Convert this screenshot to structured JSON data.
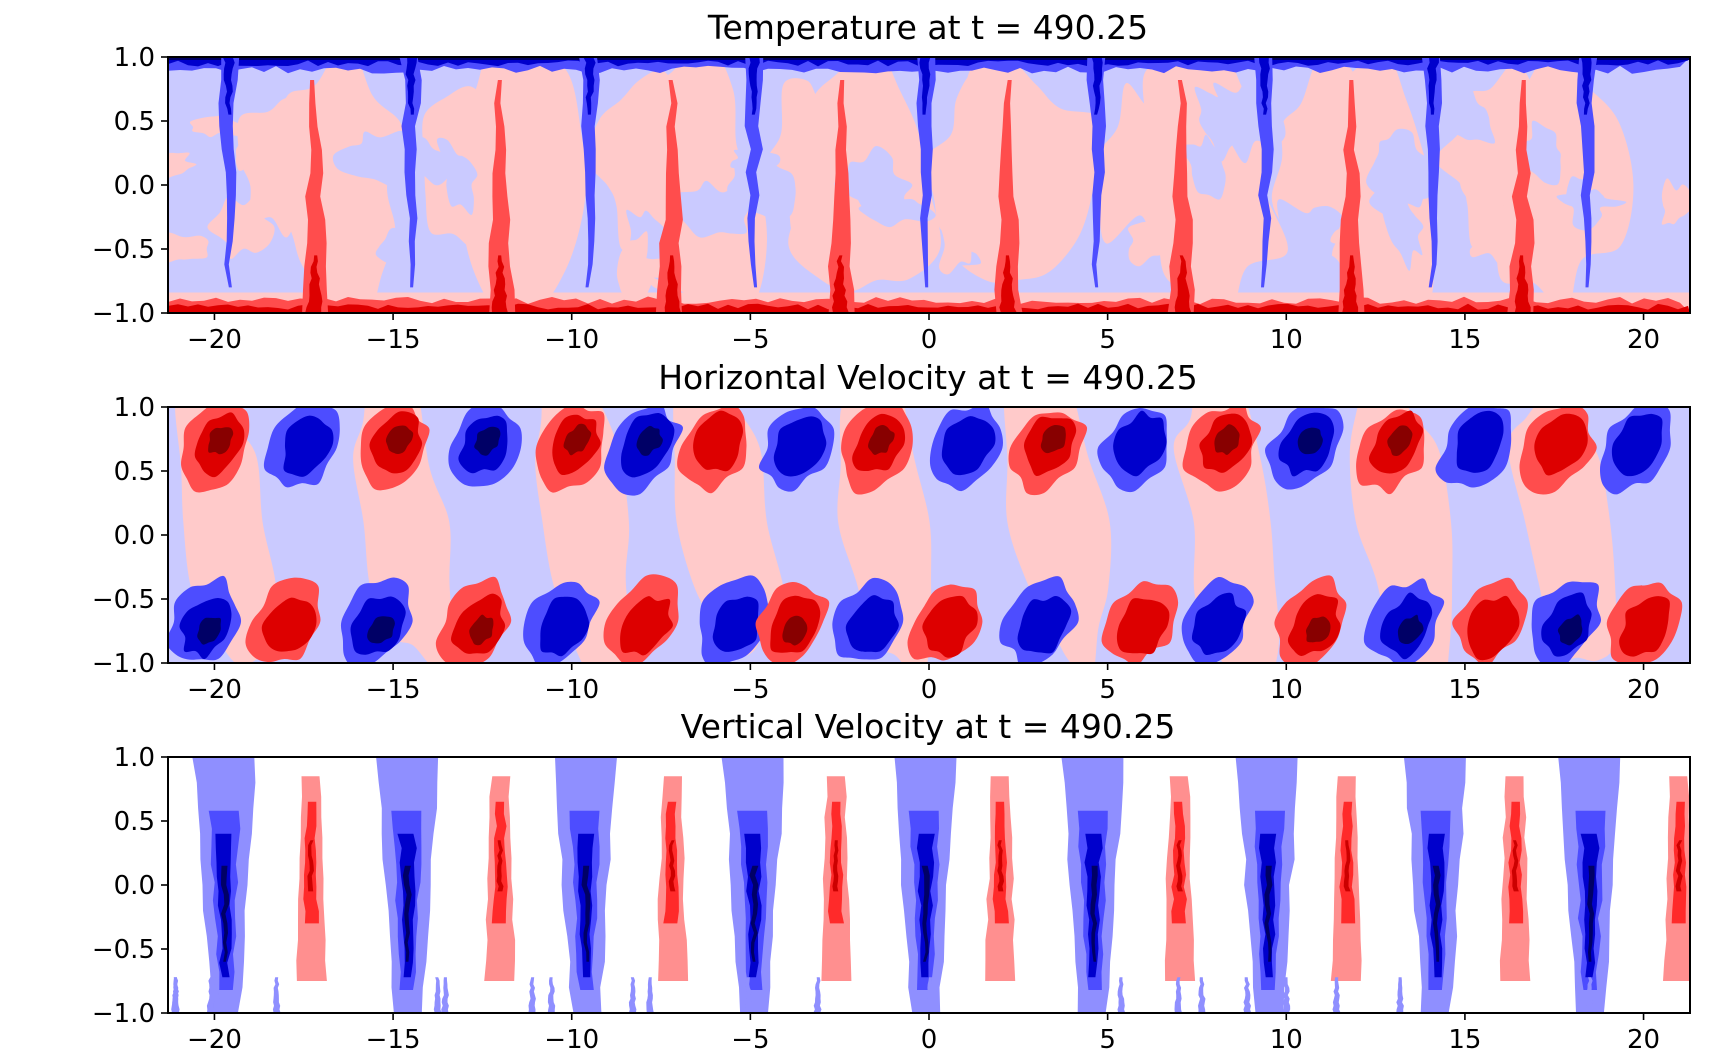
{
  "chart_data": [
    {
      "type": "heatmap",
      "title": "Temperature at t = 490.25",
      "field": "temperature",
      "xlim": [
        -21.3,
        21.3
      ],
      "ylim": [
        -1.0,
        1.0
      ],
      "x_ticks": [
        "−20",
        "−15",
        "−10",
        "−5",
        "0",
        "5",
        "10",
        "15",
        "20"
      ],
      "x_tick_values": [
        -20,
        -15,
        -10,
        -5,
        0,
        5,
        10,
        15,
        20
      ],
      "y_ticks": [
        "1.0",
        "0.5",
        "0.0",
        "−0.5",
        "−1.0"
      ],
      "y_tick_values": [
        1.0,
        0.5,
        0.0,
        -0.5,
        -1.0
      ],
      "colormap": "bwr",
      "colors": [
        "#000066",
        "#0000cc",
        "#4d4dff",
        "#cacaff",
        "#ffcaca",
        "#ff4d4d",
        "#dd0000",
        "#880000"
      ],
      "hot_plume_x": [
        -17.2,
        -12.0,
        -7.2,
        -2.5,
        2.2,
        7.1,
        11.8,
        16.6
      ],
      "cold_plume_x": [
        -19.6,
        -14.5,
        -9.5,
        -4.9,
        -0.1,
        4.7,
        9.4,
        14.1,
        18.4
      ]
    },
    {
      "type": "heatmap",
      "title": "Horizontal Velocity at t = 490.25",
      "field": "horizontal_velocity",
      "xlim": [
        -21.3,
        21.3
      ],
      "ylim": [
        -1.0,
        1.0
      ],
      "x_ticks": [
        "−20",
        "−15",
        "−10",
        "−5",
        "0",
        "5",
        "10",
        "15",
        "20"
      ],
      "x_tick_values": [
        -20,
        -15,
        -10,
        -5,
        0,
        5,
        10,
        15,
        20
      ],
      "y_ticks": [
        "1.0",
        "0.5",
        "0.0",
        "−0.5",
        "−1.0"
      ],
      "y_tick_values": [
        1.0,
        0.5,
        0.0,
        -0.5,
        -1.0
      ],
      "colormap": "bwr",
      "colors": [
        "#000066",
        "#0000cc",
        "#4d4dff",
        "#cacaff",
        "#ffcaca",
        "#ff4d4d",
        "#dd0000",
        "#880000"
      ],
      "top_cells": [
        {
          "x": -20.0,
          "sign": 1,
          "level": 3
        },
        {
          "x": -17.5,
          "sign": -1,
          "level": 2
        },
        {
          "x": -15.0,
          "sign": 1,
          "level": 3
        },
        {
          "x": -12.5,
          "sign": -1,
          "level": 3
        },
        {
          "x": -10.0,
          "sign": 1,
          "level": 3
        },
        {
          "x": -8.0,
          "sign": -1,
          "level": 3
        },
        {
          "x": -6.0,
          "sign": 1,
          "level": 2
        },
        {
          "x": -3.7,
          "sign": -1,
          "level": 2
        },
        {
          "x": -1.5,
          "sign": 1,
          "level": 3
        },
        {
          "x": 1.0,
          "sign": -1,
          "level": 2
        },
        {
          "x": 3.3,
          "sign": 1,
          "level": 3
        },
        {
          "x": 5.8,
          "sign": -1,
          "level": 2
        },
        {
          "x": 8.2,
          "sign": 1,
          "level": 3
        },
        {
          "x": 10.5,
          "sign": -1,
          "level": 3
        },
        {
          "x": 13.0,
          "sign": 1,
          "level": 3
        },
        {
          "x": 15.3,
          "sign": -1,
          "level": 2
        },
        {
          "x": 17.6,
          "sign": 1,
          "level": 2
        },
        {
          "x": 19.8,
          "sign": -1,
          "level": 2
        }
      ],
      "bottom_cells": [
        {
          "x": -20.3,
          "sign": -1,
          "level": 3
        },
        {
          "x": -18.0,
          "sign": 1,
          "level": 2
        },
        {
          "x": -15.5,
          "sign": -1,
          "level": 3
        },
        {
          "x": -12.7,
          "sign": 1,
          "level": 3
        },
        {
          "x": -10.3,
          "sign": -1,
          "level": 2
        },
        {
          "x": -8.0,
          "sign": 1,
          "level": 2
        },
        {
          "x": -5.5,
          "sign": -1,
          "level": 2
        },
        {
          "x": -3.9,
          "sign": 1,
          "level": 3
        },
        {
          "x": -1.7,
          "sign": -1,
          "level": 2
        },
        {
          "x": 0.5,
          "sign": 1,
          "level": 2
        },
        {
          "x": 3.1,
          "sign": -1,
          "level": 2
        },
        {
          "x": 5.9,
          "sign": 1,
          "level": 2
        },
        {
          "x": 8.0,
          "sign": -1,
          "level": 2
        },
        {
          "x": 10.7,
          "sign": 1,
          "level": 3
        },
        {
          "x": 13.3,
          "sign": -1,
          "level": 3
        },
        {
          "x": 15.7,
          "sign": 1,
          "level": 2
        },
        {
          "x": 17.8,
          "sign": -1,
          "level": 3
        },
        {
          "x": 20.0,
          "sign": 1,
          "level": 2
        }
      ]
    },
    {
      "type": "heatmap",
      "title": "Vertical Velocity at t = 490.25",
      "field": "vertical_velocity",
      "xlim": [
        -21.3,
        21.3
      ],
      "ylim": [
        -1.0,
        1.0
      ],
      "x_ticks": [
        "−20",
        "−15",
        "−10",
        "−5",
        "0",
        "5",
        "10",
        "15",
        "20"
      ],
      "x_tick_values": [
        -20,
        -15,
        -10,
        -5,
        0,
        5,
        10,
        15,
        20
      ],
      "y_ticks": [
        "1.0",
        "0.5",
        "0.0",
        "−0.5",
        "−1.0"
      ],
      "y_tick_values": [
        1.0,
        0.5,
        0.0,
        -0.5,
        -1.0
      ],
      "colormap": "bwr",
      "colors": [
        "#000066",
        "#0000cc",
        "#4d4dff",
        "#8f8fff",
        "#ffffff",
        "#ff8f8f",
        "#ff2a2a",
        "#cc0000"
      ],
      "downdraft_x": [
        -19.7,
        -14.6,
        -9.6,
        -4.9,
        -0.1,
        4.6,
        9.5,
        14.2,
        18.5
      ],
      "updraft_x": [
        -17.3,
        -12.0,
        -7.2,
        -2.6,
        2.0,
        7.0,
        11.7,
        16.4,
        21.0
      ]
    }
  ]
}
